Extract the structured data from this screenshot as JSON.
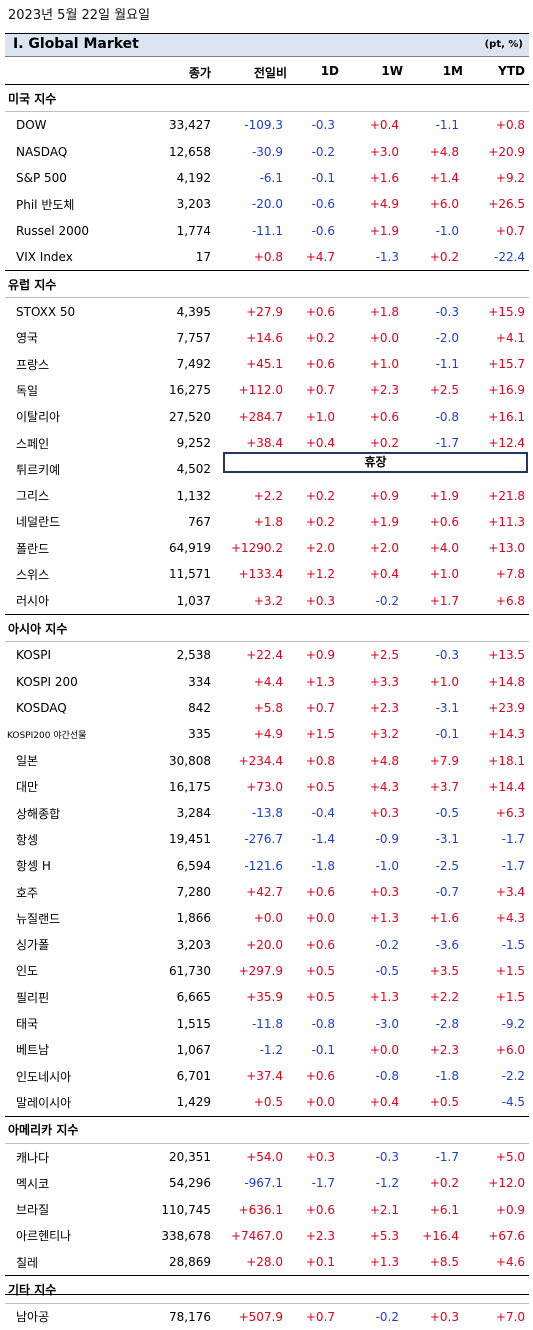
{
  "date": "2023년 5월 22일 월요일",
  "title": "Ⅰ. Global Market",
  "unit": "(pt, %)",
  "headers": [
    "종가",
    "전일비",
    "1D",
    "1W",
    "1M",
    "YTD"
  ],
  "holiday_label": "휴장",
  "sections": [
    {
      "name": "미국 지수",
      "rows": [
        [
          "DOW",
          "33,427",
          "-109.3",
          "-0.3",
          "+0.4",
          "-1.1",
          "+0.8"
        ],
        [
          "NASDAQ",
          "12,658",
          "-30.9",
          "-0.2",
          "+3.0",
          "+4.8",
          "+20.9"
        ],
        [
          "S&P 500",
          "4,192",
          "-6.1",
          "-0.1",
          "+1.6",
          "+1.4",
          "+9.2"
        ],
        [
          "Phil 반도체",
          "3,203",
          "-20.0",
          "-0.6",
          "+4.9",
          "+6.0",
          "+26.5"
        ],
        [
          "Russel 2000",
          "1,774",
          "-11.1",
          "-0.6",
          "+1.9",
          "-1.0",
          "+0.7"
        ],
        [
          "VIX Index",
          "17",
          "+0.8",
          "+4.7",
          "-1.3",
          "+0.2",
          "-22.4"
        ]
      ]
    },
    {
      "name": "유럽 지수",
      "rows": [
        [
          "STOXX 50",
          "4,395",
          "+27.9",
          "+0.6",
          "+1.8",
          "-0.3",
          "+15.9"
        ],
        [
          "영국",
          "7,757",
          "+14.6",
          "+0.2",
          "+0.0",
          "-2.0",
          "+4.1"
        ],
        [
          "프랑스",
          "7,492",
          "+45.1",
          "+0.6",
          "+1.0",
          "-1.1",
          "+15.7"
        ],
        [
          "독일",
          "16,275",
          "+112.0",
          "+0.7",
          "+2.3",
          "+2.5",
          "+16.9"
        ],
        [
          "이탈리아",
          "27,520",
          "+284.7",
          "+1.0",
          "+0.6",
          "-0.8",
          "+16.1"
        ],
        [
          "스페인",
          "9,252",
          "+38.4",
          "+0.4",
          "+0.2",
          "-1.7",
          "+12.4"
        ],
        [
          "튀르키예",
          "4,502",
          "",
          "",
          "",
          "",
          ""
        ],
        [
          "그리스",
          "1,132",
          "+2.2",
          "+0.2",
          "+0.9",
          "+1.9",
          "+21.8"
        ],
        [
          "네덜란드",
          "767",
          "+1.8",
          "+0.2",
          "+1.9",
          "+0.6",
          "+11.3"
        ],
        [
          "폴란드",
          "64,919",
          "+1290.2",
          "+2.0",
          "+2.0",
          "+4.0",
          "+13.0"
        ],
        [
          "스위스",
          "11,571",
          "+133.4",
          "+1.2",
          "+0.4",
          "+1.0",
          "+7.8"
        ],
        [
          "러시아",
          "1,037",
          "+3.2",
          "+0.3",
          "-0.2",
          "+1.7",
          "+6.8"
        ]
      ]
    },
    {
      "name": "아시아 지수",
      "rows": [
        [
          "KOSPI",
          "2,538",
          "+22.4",
          "+0.9",
          "+2.5",
          "-0.3",
          "+13.5"
        ],
        [
          "KOSPI 200",
          "334",
          "+4.4",
          "+1.3",
          "+3.3",
          "+1.0",
          "+14.8"
        ],
        [
          "KOSDAQ",
          "842",
          "+5.8",
          "+0.7",
          "+2.3",
          "-3.1",
          "+23.9"
        ],
        [
          "KOSPI200 야간선물",
          "335",
          "+4.9",
          "+1.5",
          "+3.2",
          "-0.1",
          "+14.3"
        ],
        [
          "일본",
          "30,808",
          "+234.4",
          "+0.8",
          "+4.8",
          "+7.9",
          "+18.1"
        ],
        [
          "대만",
          "16,175",
          "+73.0",
          "+0.5",
          "+4.3",
          "+3.7",
          "+14.4"
        ],
        [
          "상해종합",
          "3,284",
          "-13.8",
          "-0.4",
          "+0.3",
          "-0.5",
          "+6.3"
        ],
        [
          "항셍",
          "19,451",
          "-276.7",
          "-1.4",
          "-0.9",
          "-3.1",
          "-1.7"
        ],
        [
          "항셍 H",
          "6,594",
          "-121.6",
          "-1.8",
          "-1.0",
          "-2.5",
          "-1.7"
        ],
        [
          "호주",
          "7,280",
          "+42.7",
          "+0.6",
          "+0.3",
          "-0.7",
          "+3.4"
        ],
        [
          "뉴질랜드",
          "1,866",
          "+0.0",
          "+0.0",
          "+1.3",
          "+1.6",
          "+4.3"
        ],
        [
          "싱가폴",
          "3,203",
          "+20.0",
          "+0.6",
          "-0.2",
          "-3.6",
          "-1.5"
        ],
        [
          "인도",
          "61,730",
          "+297.9",
          "+0.5",
          "-0.5",
          "+3.5",
          "+1.5"
        ],
        [
          "필리핀",
          "6,665",
          "+35.9",
          "+0.5",
          "+1.3",
          "+2.2",
          "+1.5"
        ],
        [
          "태국",
          "1,515",
          "-11.8",
          "-0.8",
          "-3.0",
          "-2.8",
          "-9.2"
        ],
        [
          "베트남",
          "1,067",
          "-1.2",
          "-0.1",
          "+0.0",
          "+2.3",
          "+6.0"
        ],
        [
          "인도네시아",
          "6,701",
          "+37.4",
          "+0.6",
          "-0.8",
          "-1.8",
          "-2.2"
        ],
        [
          "말레이시아",
          "1,429",
          "+0.5",
          "+0.0",
          "+0.4",
          "+0.5",
          "-4.5"
        ]
      ]
    },
    {
      "name": "아메리카 지수",
      "rows": [
        [
          "캐나다",
          "20,351",
          "+54.0",
          "+0.3",
          "-0.3",
          "-1.7",
          "+5.0"
        ],
        [
          "멕시코",
          "54,296",
          "-967.1",
          "-1.7",
          "-1.2",
          "+0.2",
          "+12.0"
        ],
        [
          "브라질",
          "110,745",
          "+636.1",
          "+0.6",
          "+2.1",
          "+6.1",
          "+0.9"
        ],
        [
          "아르헨티나",
          "338,678",
          "+7467.0",
          "+2.3",
          "+5.3",
          "+16.4",
          "+67.6"
        ],
        [
          "칠레",
          "28,869",
          "+28.0",
          "+0.1",
          "+1.3",
          "+8.5",
          "+4.6"
        ]
      ]
    },
    {
      "name": "기타 지수",
      "rows": [
        [
          "남아공",
          "78,176",
          "+507.9",
          "+0.7",
          "-0.2",
          "+0.3",
          "+7.0"
        ]
      ]
    }
  ]
}
